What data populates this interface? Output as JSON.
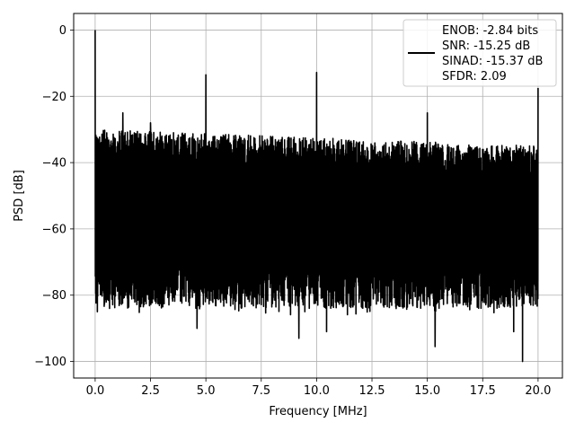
{
  "chart_data": {
    "type": "line",
    "xlabel": "Frequency [MHz]",
    "ylabel": "PSD [dB]",
    "xlim": [
      -0.97,
      21.1
    ],
    "ylim": [
      -105,
      5
    ],
    "x_ticks": [
      0.0,
      2.5,
      5.0,
      7.5,
      10.0,
      12.5,
      15.0,
      17.5,
      20.0
    ],
    "x_tick_labels": [
      "0.0",
      "2.5",
      "5.0",
      "7.5",
      "10.0",
      "12.5",
      "15.0",
      "17.5",
      "20.0"
    ],
    "y_ticks": [
      0,
      -20,
      -40,
      -60,
      -80,
      -100
    ],
    "y_tick_labels": [
      "0",
      "−20",
      "−40",
      "−60",
      "−80",
      "−100"
    ],
    "grid": true,
    "legend_position": "top-right",
    "legend_lines": [
      "ENOB: -2.84 bits",
      "SNR: -15.25 dB",
      "SINAD: -15.37 dB",
      "SFDR: 2.09"
    ],
    "series": [
      {
        "color": "#000000",
        "noise_floor": {
          "x_range": [
            0.0,
            20.0
          ],
          "upper_db_start": -30,
          "upper_db_end": -35,
          "lower_db_typical": -78,
          "lower_db_min": -100
        },
        "peaks": [
          {
            "x": 0.0,
            "y": 0.0
          },
          {
            "x": 1.25,
            "y": -25.0
          },
          {
            "x": 2.5,
            "y": -28.0
          },
          {
            "x": 5.0,
            "y": -13.5
          },
          {
            "x": 10.0,
            "y": -12.8
          },
          {
            "x": 15.0,
            "y": -25.0
          },
          {
            "x": 20.0,
            "y": -17.5
          }
        ],
        "notable_minima": [
          {
            "x": 0.1,
            "y": -85
          },
          {
            "x": 0.65,
            "y": -84
          },
          {
            "x": 4.6,
            "y": -90
          },
          {
            "x": 9.2,
            "y": -93
          },
          {
            "x": 10.45,
            "y": -91
          },
          {
            "x": 15.35,
            "y": -95.5
          },
          {
            "x": 18.9,
            "y": -91
          },
          {
            "x": 19.3,
            "y": -100
          }
        ]
      }
    ]
  }
}
